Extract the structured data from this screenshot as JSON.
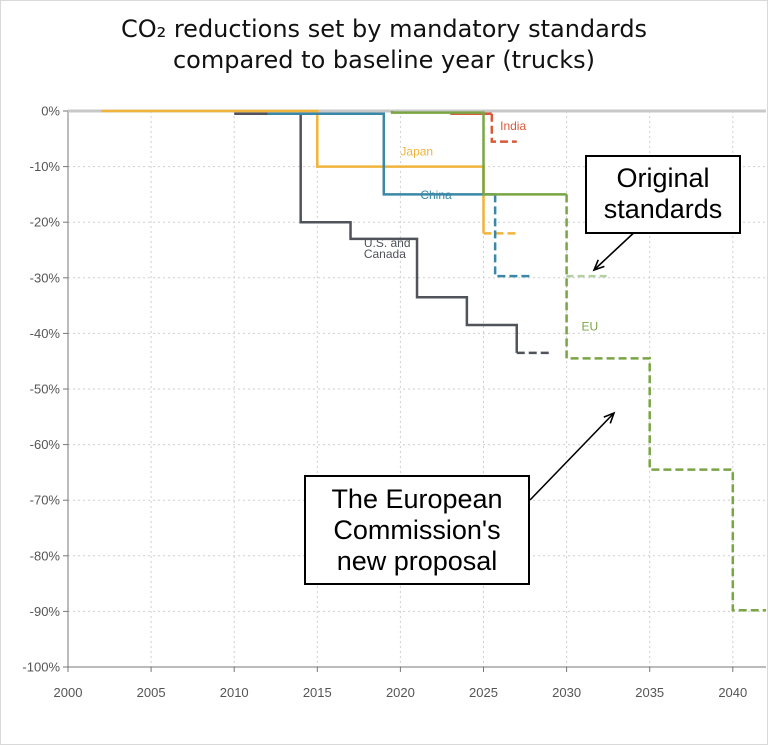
{
  "chart_data": {
    "type": "line",
    "title_line1": "CO₂ reductions set by mandatory standards",
    "title_line2": "compared to baseline year (trucks)",
    "xlabel": "",
    "ylabel": "",
    "xlim": [
      2000,
      2042
    ],
    "ylim": [
      -100,
      0
    ],
    "x_ticks": [
      "2000",
      "2005",
      "2010",
      "2015",
      "2020",
      "2025",
      "2030",
      "2035",
      "2040"
    ],
    "y_ticks": [
      "0%",
      "-10%",
      "-20%",
      "-30%",
      "-40%",
      "-50%",
      "-60%",
      "-70%",
      "-80%",
      "-90%",
      "-100%"
    ],
    "grid": "dotted",
    "series": [
      {
        "name": "U.S. and Canada",
        "color": "#50535a",
        "dashed_from_x": 2027,
        "points": [
          [
            2010,
            -0.5
          ],
          [
            2014,
            -0.5
          ],
          [
            2014,
            -20
          ],
          [
            2017,
            -20
          ],
          [
            2017,
            -23
          ],
          [
            2021,
            -23
          ],
          [
            2021,
            -33.5
          ],
          [
            2024,
            -33.5
          ],
          [
            2024,
            -38.5
          ],
          [
            2027,
            -38.5
          ],
          [
            2027,
            -43.5
          ],
          [
            2029,
            -43.5
          ]
        ]
      },
      {
        "name": "Japan",
        "color": "#f0b43a",
        "dashed_from_x": 2025,
        "points": [
          [
            2002,
            0
          ],
          [
            2015,
            0
          ],
          [
            2015,
            -10
          ],
          [
            2025,
            -10
          ],
          [
            2025,
            -22
          ],
          [
            2027,
            -22
          ]
        ]
      },
      {
        "name": "China",
        "color": "#3a88a8",
        "dashed_from_x": 2025.7,
        "points": [
          [
            2012,
            -0.5
          ],
          [
            2019,
            -0.5
          ],
          [
            2019,
            -15
          ],
          [
            2025,
            -15
          ],
          [
            2025.7,
            -15
          ],
          [
            2025.7,
            -29.7
          ],
          [
            2028,
            -29.7
          ]
        ]
      },
      {
        "name": "India",
        "color": "#d85a3a",
        "dashed_from_x": 2025.5,
        "points": [
          [
            2023,
            -0.5
          ],
          [
            2025.5,
            -0.5
          ],
          [
            2025.5,
            -5.5
          ],
          [
            2027,
            -5.5
          ]
        ]
      },
      {
        "name": "EU",
        "color": "#7aa545",
        "dashed_from_x": 2030,
        "points": [
          [
            2019.5,
            0
          ],
          [
            2019.5,
            -0.3
          ],
          [
            2025,
            -0.3
          ],
          [
            2025,
            -15
          ],
          [
            2030,
            -15
          ],
          [
            2030,
            -44.5
          ],
          [
            2035,
            -44.5
          ],
          [
            2035,
            -64.5
          ],
          [
            2040,
            -64.5
          ],
          [
            2040,
            -89.8
          ],
          [
            2042,
            -89.8
          ]
        ]
      }
    ],
    "original_standard_extension": {
      "series": "EU",
      "x": [
        2030,
        2032.5
      ],
      "y": -29.7,
      "color": "#b5cfa5"
    },
    "annotations": [
      "Original standards",
      "The European Commission's new proposal"
    ]
  },
  "callouts": {
    "original_line1": "Original",
    "original_line2": "standards",
    "proposal_line1": "The European",
    "proposal_line2": "Commission's",
    "proposal_line3": "new proposal"
  },
  "colors": {
    "background": "#ffffff",
    "baseline": "#c8c8c8",
    "grid": "#cfcfcf",
    "axis": "#777777"
  }
}
